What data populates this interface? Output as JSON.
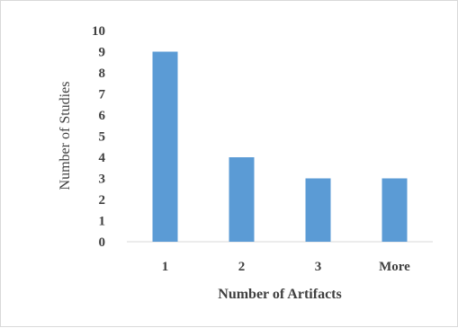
{
  "chart_data": {
    "type": "bar",
    "categories": [
      "1",
      "2",
      "3",
      "More"
    ],
    "values": [
      9,
      4,
      3,
      3
    ],
    "xlabel": "Number of Artifacts",
    "ylabel": "Number of Studies",
    "ylim": [
      0,
      10
    ],
    "yticks": [
      "0",
      "1",
      "2",
      "3",
      "4",
      "5",
      "6",
      "7",
      "8",
      "9",
      "10"
    ],
    "grid": false,
    "legend": "none",
    "bar_color": "#5b9bd5"
  }
}
